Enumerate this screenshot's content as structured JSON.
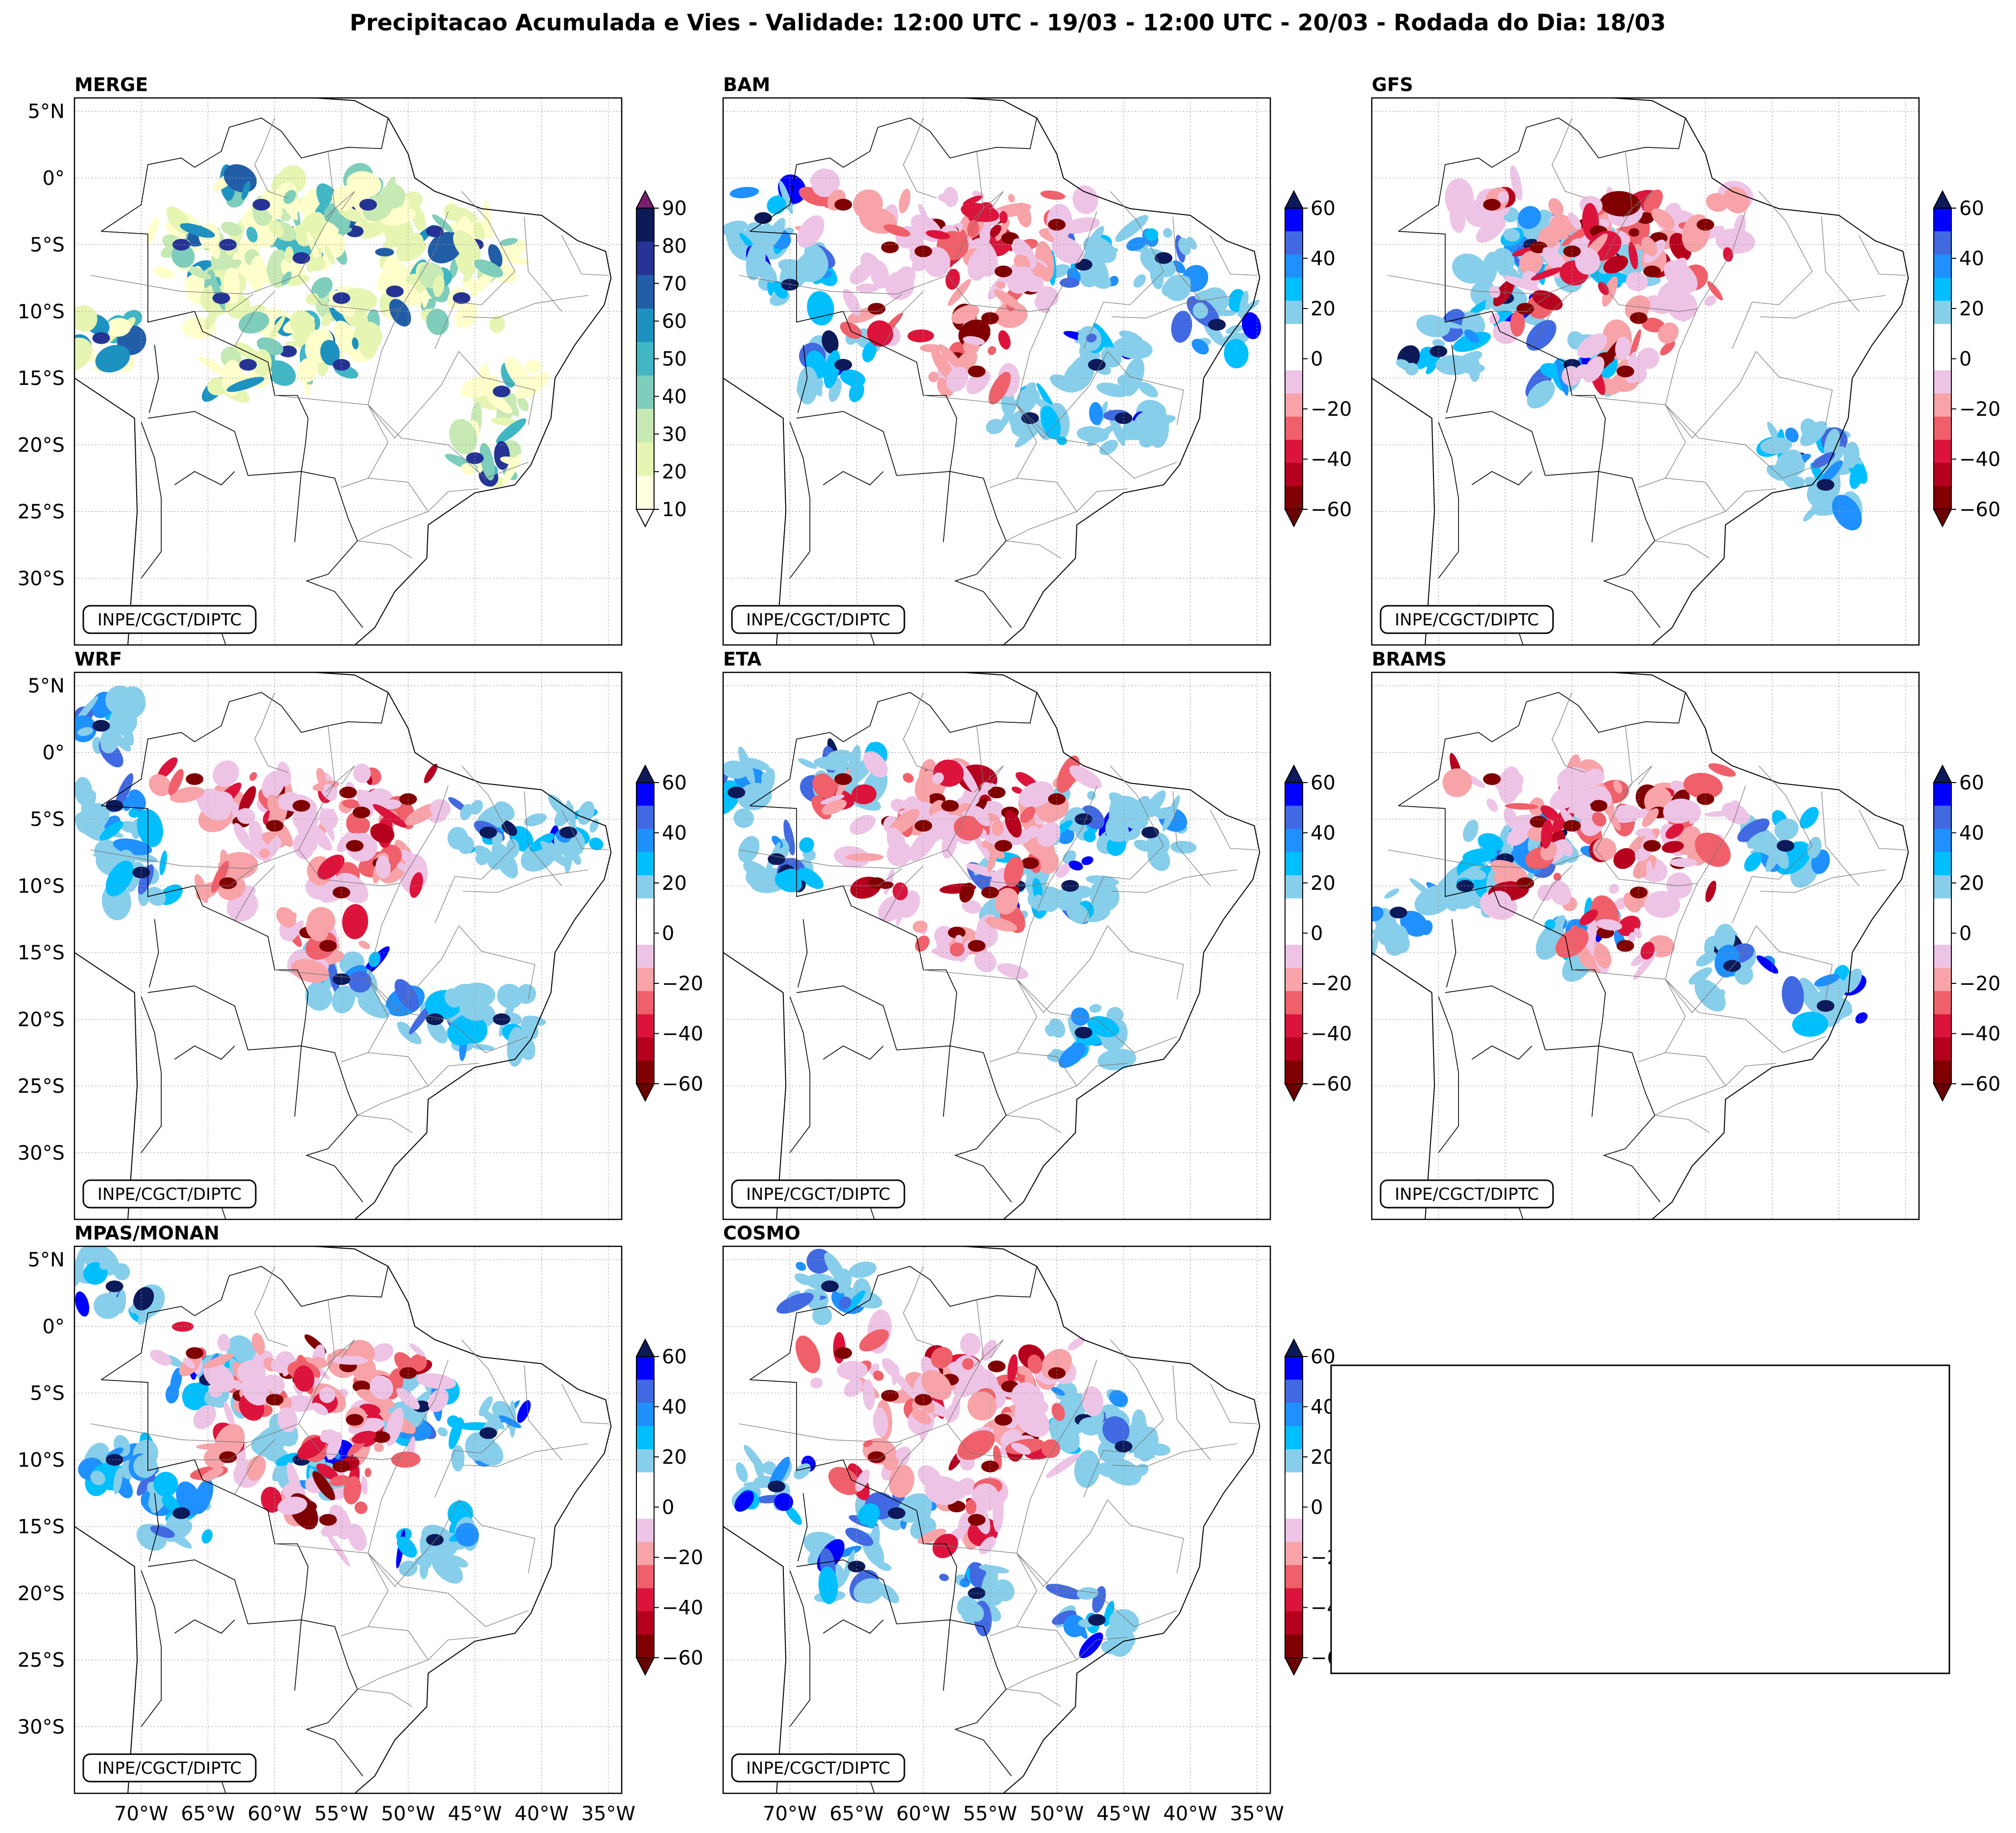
{
  "figure": {
    "title": "Precipitacao Acumulada e Vies - Validade: 12:00 UTC - 19/03 - 12:00 UTC - 20/03 - Rodada do Dia: 18/03",
    "credit": "INPE/CGCT/DIPTC"
  },
  "axes": {
    "lat_labels": [
      "5°N",
      "0°",
      "5°S",
      "10°S",
      "15°S",
      "20°S",
      "25°S",
      "30°S"
    ],
    "lon_labels": [
      "70°W",
      "65°W",
      "60°W",
      "55°W",
      "50°W",
      "45°W",
      "40°W",
      "35°W"
    ]
  },
  "colorbars": {
    "precip": {
      "ticks": [
        "90",
        "80",
        "70",
        "60",
        "50",
        "40",
        "30",
        "20",
        "10"
      ],
      "colors": [
        "#ffffe0",
        "#e6f5b2",
        "#c7e9b4",
        "#7fcdbb",
        "#41b6c4",
        "#1d91c0",
        "#225ea8",
        "#253494",
        "#0c1a5a"
      ],
      "over": "#7a1d6e",
      "under": "#ffffff"
    },
    "bias": {
      "ticks": [
        "60",
        "40",
        "20",
        "0",
        "−20",
        "−40",
        "−60"
      ],
      "colors": [
        "#800000",
        "#b5001e",
        "#dc143c",
        "#f0606a",
        "#f7a3a8",
        "#eec4e6",
        "#ffffff",
        "#ffffff",
        "#87ceeb",
        "#00bfff",
        "#1e90ff",
        "#4169e1",
        "#0000ff"
      ],
      "over": "#0c1a5a",
      "under": "#6b0000"
    }
  },
  "panels": [
    {
      "label": "MERGE",
      "kind": "precip"
    },
    {
      "label": "BAM",
      "kind": "bias"
    },
    {
      "label": "GFS",
      "kind": "bias"
    },
    {
      "label": "WRF",
      "kind": "bias"
    },
    {
      "label": "ETA",
      "kind": "bias"
    },
    {
      "label": "BRAMS",
      "kind": "bias"
    },
    {
      "label": "MPAS/MONAN",
      "kind": "bias"
    },
    {
      "label": "COSMO",
      "kind": "bias"
    }
  ]
}
